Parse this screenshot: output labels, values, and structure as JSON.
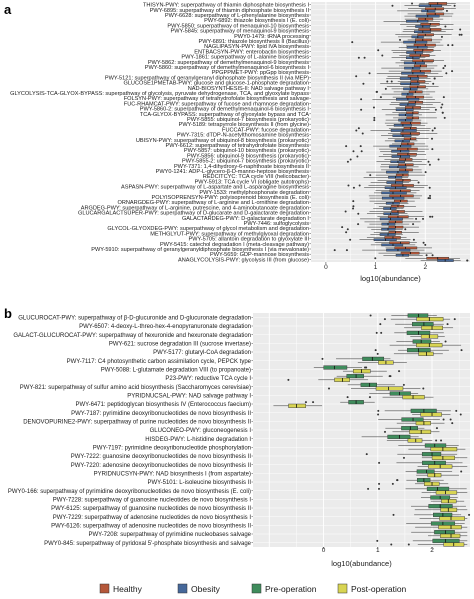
{
  "colors": {
    "Healthy": "#b5583a",
    "Obesity": "#46689a",
    "Pre-operation": "#3f8c5c",
    "Post-operation": "#d8d453",
    "panel_bg": "#ebebeb",
    "grid": "#ffffff"
  },
  "legend": {
    "items": [
      "Healthy",
      "Obesity",
      "Pre-operation",
      "Post-operation"
    ]
  },
  "chart_data": [
    {
      "panel": "a",
      "type": "boxplot",
      "orientation": "horizontal",
      "xlabel": "log10(abundance)",
      "xticks": [
        0,
        1,
        2
      ],
      "xlim": [
        -0.3,
        2.9
      ],
      "groups": [
        "Healthy",
        "Obesity"
      ],
      "categories": [
        "THISYN-PWY: superpathway of thiamin diphosphate biosynthesis I",
        "PWY-6895: superpathway of thiamin diphosphate biosynthesis II",
        "PWY-6628: superpathway of L-phenylalanine biosynthesis",
        "PWY-6892: thiazole biosynthesis I (E. coli)",
        "PWY-5850: superpathway of menaquinol-10 biosynthesis",
        "PWY-5845: superpathway of menaquinol-9 biosynthesis",
        "PWY0-1479: tRNA processing",
        "PWY-6891: thiazole biosynthesis II (Bacillus)",
        "NAGLIPASYN-PWY: lipid IVA biosynthesis",
        "ENTBACSYN-PWY: enterobactin biosynthesis",
        "PWY-1861: superpathway of L-alanine biosynthesis",
        "PWY-5862: superpathway of demethylmenaquinol-9 biosynthesis",
        "PWY-5860: superpathway of demethylmenaquinol-6 biosynthesis I",
        "PPGPPMET-PWY: ppGpp biosynthesis",
        "PWY-5121: superpathway of geranylgeranyl diphosphate biosynthesis II (via MEP)",
        "GLUCOSE1PMETAB-PWY: glucose and glucose-1-phosphate degradation",
        "NAD-BIOSYNTHESIS-II: NAD salvage pathway I",
        "GLYCOLYSIS-TCA-GLYOX-BYPASS: superpathway of glycolysis, pyruvate dehydrogenase, TCA, and glyoxylate bypass",
        "FOLSYN-PWY: superpathway of tetrahydrofolate biosynthesis and salvage",
        "FUC-RHAMCAT-PWY: superpathway of fucose and rhamnose degradation",
        "PWY-5860-2: superpathway of demethylmenaquinol-6 biosynthesis I",
        "TCA-GLYOX-BYPASS: superpathway of glyoxylate bypass and TCA",
        "PWY-5855: ubiquinol-7 biosynthesis (prokaryotic)",
        "PWY-5189: tetrapyrrole biosynthesis II (from glycine)",
        "FUCCAT-PWY: fucose degradation",
        "PWY-7315: dTDP-N-acetylthomosamine biosynthesis",
        "UBISYN-PWY: superpathway of ubiquinol-8 biosynthesis (prokaryotic)",
        "PWY-6612: superpathway of tetrahydrofolate biosynthesis",
        "PWY-5857: ubiquinol-10 biosynthesis (prokaryotic)",
        "PWY-5856: ubiquinol-9 biosynthesis (prokaryotic)",
        "PWY-5855-2: ubiquinol-7 biosynthesis (prokaryotic)",
        "PWY-7371: 1,4-dihydroxy-6-naphthoate biosynthesis II",
        "PWY0-1241: ADP-L-glycero-β-D-manno-heptose biosynthesis",
        "REDCITCYC: TCA cycle VIII (helicobacter)",
        "PWY-5913: TCA cycle VI (obligate autotrophs)",
        "ASPASN-PWY: superpathway of L-aspartate and L-asparagine biosynthesis",
        "PWY-1533: methylphosphonate degradation",
        "POLYISOPRENSYN-PWY: polyisoprenoid biosynthesis (E. coli)",
        "ORNARGDEG-PWY: superpathway of L-arginine and L-ornithine degradation",
        "ARGDEG-PWY: superpathway of L-arginine, putrescine, and 4-aminobutanoate degradation",
        "GLUCARGALACTSUPER-PWY: superpathway of D-glucarate and D-galactarate degradation",
        "GALACTARDEG-PWY: D-galactarate degradation I",
        "PWY-7446: sulfoglycolysis",
        "GLYCOL-GLYOXDEG-PWY: superpathway of glycol metabolism and degradation",
        "METHGLYUT-PWY: superpathway of methylglyoxal degradation",
        "PWY-5705: allantoin degradation to glyoxylate III",
        "PWY-5415: catechol degradation I (meta-cleavage pathway)",
        "PWY-5910: superpathway of geranylgeranyldiphosphate biosynthesis I (via mevalonate)",
        "PWY-5659: GDP-mannose biosynthesis",
        "ANAGLYCOLYSIS-PWY: glycolysis III (from glucose)"
      ],
      "medians_log10": {
        "Healthy": [
          2.25,
          2.2,
          2.2,
          2.0,
          2.1,
          2.1,
          2.0,
          1.95,
          2.0,
          1.95,
          1.9,
          1.95,
          1.9,
          1.9,
          1.85,
          1.85,
          1.85,
          1.8,
          1.8,
          1.8,
          1.75,
          1.75,
          1.75,
          1.7,
          1.7,
          1.7,
          1.7,
          1.65,
          1.65,
          1.65,
          1.6,
          1.6,
          1.6,
          1.55,
          1.55,
          1.55,
          1.5,
          1.5,
          1.5,
          1.45,
          1.45,
          1.45,
          1.4,
          1.4,
          1.4,
          1.35,
          1.5,
          1.6,
          1.7,
          2.25
        ],
        "Obesity": [
          2.1,
          2.05,
          2.05,
          1.85,
          1.95,
          1.95,
          1.85,
          1.8,
          1.85,
          1.8,
          1.75,
          1.8,
          1.75,
          1.75,
          1.7,
          1.7,
          1.7,
          1.65,
          1.65,
          1.65,
          1.6,
          1.6,
          1.6,
          1.55,
          1.55,
          1.55,
          1.55,
          1.5,
          1.5,
          1.5,
          1.45,
          1.45,
          1.45,
          1.4,
          1.4,
          1.4,
          1.35,
          1.35,
          1.35,
          1.3,
          1.3,
          1.3,
          1.25,
          1.25,
          1.25,
          1.2,
          1.35,
          1.45,
          1.55,
          2.4
        ]
      }
    },
    {
      "panel": "b",
      "type": "boxplot",
      "orientation": "horizontal",
      "xlabel": "log10(abundance)",
      "xticks": [
        0,
        1,
        2
      ],
      "xlim": [
        -1.3,
        2.7
      ],
      "groups": [
        "Pre-operation",
        "Post-operation"
      ],
      "categories": [
        "GLUCUROCAT-PWY: superpathway of &beta;-D-glucuronide and D-glucuronate degradation",
        "PWY-6507: 4-deoxy-L-threo-hex-4-enopyranuronate degradation",
        "GALACT-GLUCUROCAT-PWY: superpathway of hexuronide and hexuronate degradation",
        "PWY-621: sucrose degradation III (sucrose invertase)",
        "PWY-5177: glutaryl-CoA degradation",
        "PWY-7117: C4 photosynthetic carbon assimilation cycle, PEPCK type",
        "PWY-5088: L-glutamate degradation VIII (to propanoate)",
        "P23-PWY: reductive TCA cycle I",
        "PWY-821: superpathway of sulfur amino acid biosynthesis (Saccharomyces cerevisiae)",
        "PYRIDNUCSAL-PWY: NAD salvage pathway I",
        "PWY-6471: peptidoglycan biosynthesis IV (Enterococcus faecium)",
        "PWY-7187: pyrimidine deoxyribonucleotides de novo biosynthesis II",
        "DENOVOPURINE2-PWY: superpathway of purine nucleotides de novo biosynthesis II",
        "GLUCONEO-PWY: gluconeogenesis I",
        "HISDEG-PWY: L-histidine degradation I",
        "PWY-7197: pyrimidine deoxyribonucleotide phosphorylation",
        "PWY-7222: guanosine deoxyribonucleotides de novo biosynthesis II",
        "PWY-7220: adenosine deoxyribonucleotides de novo biosynthesis II",
        "PYRIDNUCSYN-PWY: NAD biosynthesis I (from aspartate)",
        "PWY-5101: L-isoleucine biosynthesis II",
        "PWY0-166: superpathway of pyrimidine deoxyribonucleotides de novo biosynthesis (E. coli)",
        "PWY-7228: superpathway of guanosine nucleotides de novo biosynthesis I",
        "PWY-6125: superpathway of guanosine nucleotides de novo biosynthesis II",
        "PWY-7229: superpathway of adenosine nucleotides de novo biosynthesis I",
        "PWY-6126: superpathway of adenosine nucleotides de novo biosynthesis II",
        "PWY-7208: superpathway of pyrimidine nucleobases salvage",
        "PWY0-845: superpathway of pyridoxal 5'-phosphate biosynthesis and salvage"
      ],
      "medians_log10": {
        "Pre-operation": [
          1.75,
          1.85,
          1.75,
          1.8,
          1.75,
          0.9,
          0.2,
          0.6,
          0.85,
          1.4,
          0.6,
          1.85,
          1.65,
          1.6,
          1.4,
          2.05,
          2.0,
          2.05,
          1.9,
          1.85,
          2.1,
          2.15,
          2.15,
          2.2,
          2.2,
          2.25,
          2.25
        ],
        "Post-operation": [
          1.95,
          2.0,
          1.95,
          1.95,
          1.9,
          1.15,
          0.7,
          0.35,
          1.2,
          1.65,
          -0.5,
          2.0,
          1.85,
          1.8,
          1.7,
          2.2,
          2.2,
          2.15,
          2.05,
          2.0,
          2.25,
          2.3,
          2.3,
          2.35,
          2.35,
          2.35,
          2.4
        ]
      }
    }
  ]
}
